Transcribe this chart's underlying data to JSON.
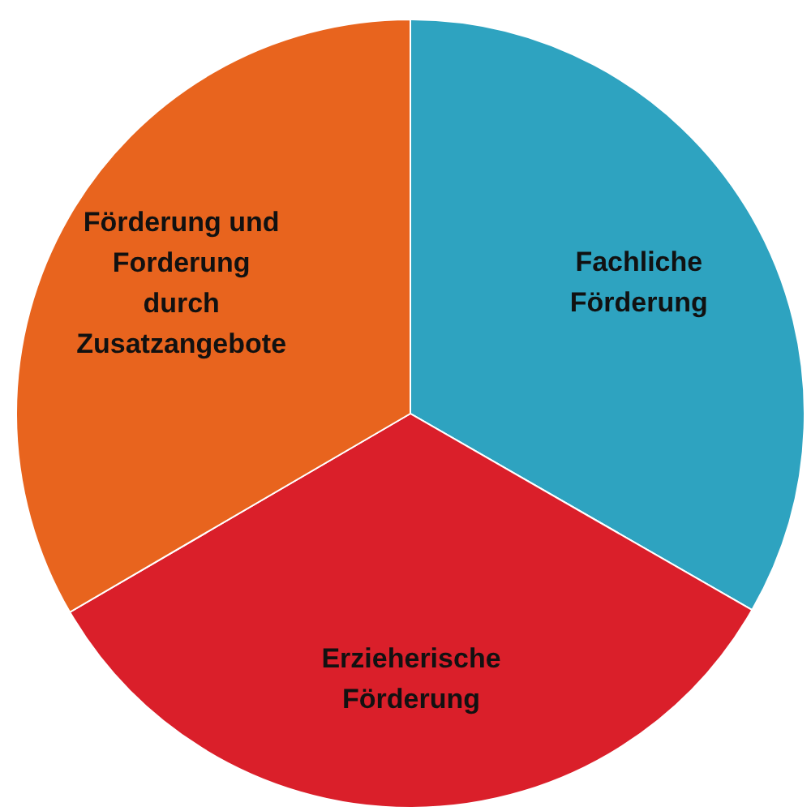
{
  "chart_data": {
    "type": "pie",
    "categories": [
      "Fachliche Förderung",
      "Erzieherische Förderung",
      "Förderung und Forderung durch Zusatzangebote"
    ],
    "values": [
      33.3,
      33.3,
      33.4
    ],
    "colors": [
      "#2ea3c0",
      "#da1f2a",
      "#e8641e"
    ]
  }
}
